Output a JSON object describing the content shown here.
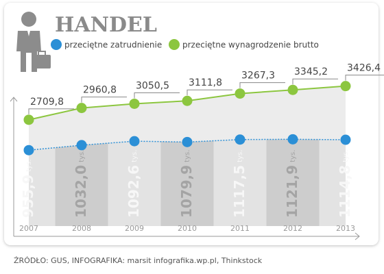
{
  "chart_data": {
    "type": "line",
    "title": "HANDEL",
    "source": "ŹRÓDŁO: GUS, INFOGRAFIKA: marsit infografika.wp.pl, Thinkstock",
    "categories": [
      "2007",
      "2008",
      "2009",
      "2010",
      "2011",
      "2012",
      "2013"
    ],
    "ylim": [
      450,
      3800
    ],
    "y2lim": [
      -200,
      2200
    ],
    "series": [
      {
        "name": "przeciętne zatrudnienie",
        "color": "#2b8fd6",
        "axis": "y2",
        "values": [
          955.9,
          1032.0,
          1092.6,
          1079.9,
          1117.5,
          1121.9,
          1114.8
        ],
        "value_labels": [
          "955,9",
          "1032,0",
          "1092,6",
          "1079,9",
          "1117,5",
          "1121,9",
          "1114,8"
        ],
        "unit": "tys."
      },
      {
        "name": "przeciętne wynagrodzenie brutto",
        "color": "#8cc63f",
        "values": [
          2709.8,
          2960.8,
          3050.5,
          3111.8,
          3267.3,
          3345.2,
          3426.4
        ],
        "value_labels": [
          "2709,8",
          "2960,8",
          "3050,5",
          "3111,8",
          "3267,3",
          "3345,2",
          "3426,4"
        ]
      }
    ]
  }
}
